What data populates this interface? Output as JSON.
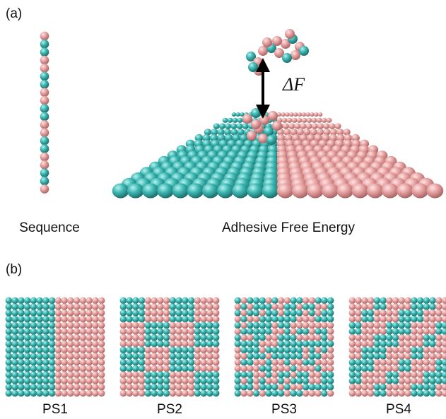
{
  "panel_a": {
    "label": "(a)",
    "sequence_label": "Sequence",
    "energy_label": "Adhesive Free Energy",
    "delta_f": "ΔF"
  },
  "panel_b": {
    "label": "(b)",
    "surfaces": [
      "PS1",
      "PS2",
      "PS3",
      "PS4"
    ]
  }
}
